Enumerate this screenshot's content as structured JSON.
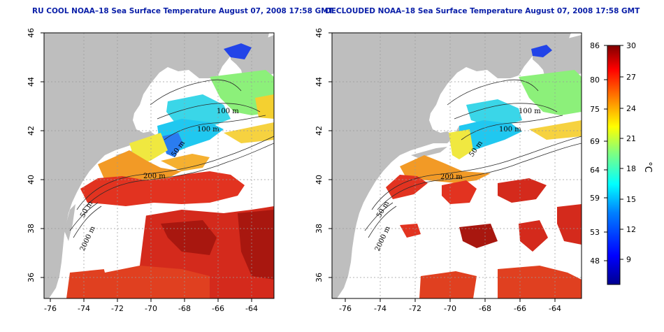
{
  "left_panel": {
    "title": "RU COOL NOAA–18 Sea Surface Temperature August 07, 2008 17:58 GMT",
    "contour_labels": [
      "100 m",
      "100 m",
      "50 m",
      "200 m",
      "50 m",
      "2000 m"
    ]
  },
  "right_panel": {
    "title": "DECLOUDED NOAA–18 Sea Surface Temperature August 07, 2008 17:58 GMT",
    "contour_labels": [
      "100 m",
      "100 m",
      "50 m",
      "200 m",
      "50 m",
      "2000 m"
    ]
  },
  "axes": {
    "lon_ticks": [
      "-76",
      "-74",
      "-72",
      "-70",
      "-68",
      "-66",
      "-64"
    ],
    "lat_ticks": [
      "36",
      "38",
      "40",
      "42",
      "44",
      "46"
    ]
  },
  "colorbar": {
    "fahrenheit_label": "°F",
    "celsius_label": "°C",
    "fahrenheit_ticks": [
      "86",
      "80",
      "75",
      "69",
      "64",
      "59",
      "53",
      "48"
    ],
    "celsius_ticks": [
      "30",
      "27",
      "24",
      "21",
      "18",
      "15",
      "12",
      "9"
    ],
    "colors": [
      "#00008f",
      "#0000ff",
      "#0080ff",
      "#00ffff",
      "#80ff80",
      "#ffff00",
      "#ff8000",
      "#ff0000",
      "#800000"
    ]
  },
  "colors": {
    "land": "#bebebe",
    "title": "#0a1fa8",
    "grid": "#999999"
  }
}
